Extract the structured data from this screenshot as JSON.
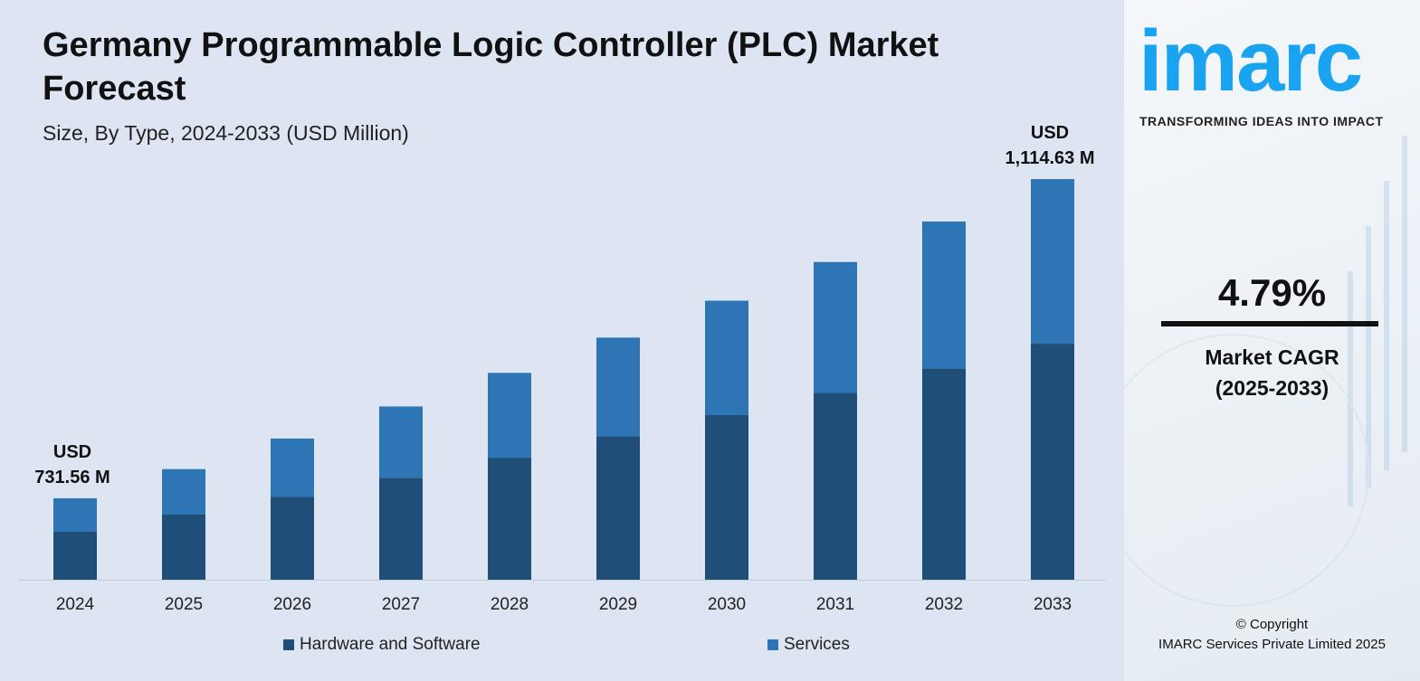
{
  "chart_data": {
    "type": "bar",
    "stacked": true,
    "title": "Germany Programmable Logic Controller (PLC) Market Forecast",
    "subtitle": "Size, By Type, 2024-2033 (USD Million)",
    "categories": [
      "2024",
      "2025",
      "2026",
      "2027",
      "2028",
      "2029",
      "2030",
      "2031",
      "2032",
      "2033"
    ],
    "series": [
      {
        "name": "Hardware and Software",
        "color": "#1f4e79",
        "values": [
          430.9,
          451.5,
          470.7,
          495.0,
          520.4,
          547.2,
          571.5,
          596.9,
          627.6,
          656.5
        ]
      },
      {
        "name": "Services",
        "color": "#2e75b6",
        "values": [
          300.7,
          315.1,
          332.6,
          346.8,
          361.7,
          377.2,
          397.2,
          418.2,
          436.1,
          458.1
        ]
      }
    ],
    "annotations": {
      "first": [
        "USD",
        "731.56 M"
      ],
      "last": [
        "USD",
        "1,114.63 M"
      ]
    },
    "legend": "bottom",
    "grid": false
  },
  "cagr": {
    "value": "4.79%",
    "label1": "Market CAGR",
    "label2": "(2025-2033)"
  },
  "brand": {
    "logo": "imarc",
    "tagline": "TRANSFORMING IDEAS INTO IMPACT",
    "color": "#1aa3f0"
  },
  "copyright": {
    "line1": "© Copyright",
    "line2": "IMARC Services Private Limited 2025"
  }
}
